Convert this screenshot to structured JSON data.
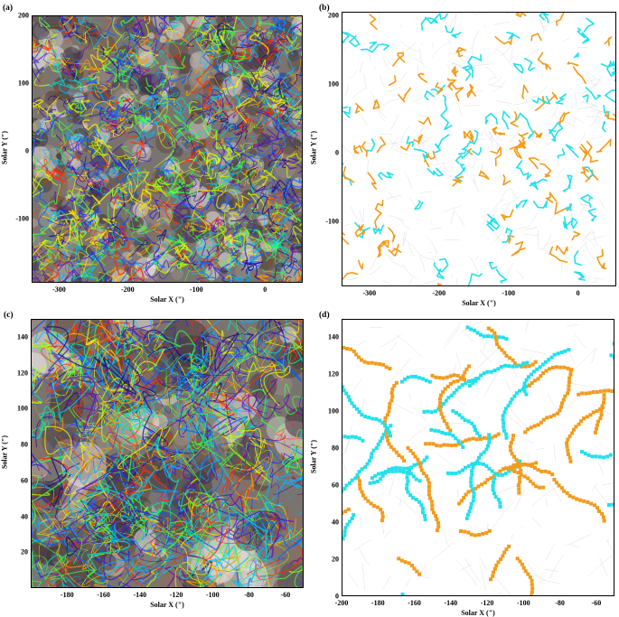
{
  "panels": [
    {
      "label": "(a)",
      "style": "color",
      "xlabel": "Solar X (\")",
      "ylabel": "Solar Y (\")",
      "xticks": [
        "-300",
        "-200",
        "-100",
        "0"
      ],
      "xtick_values": [
        -300,
        -200,
        -100,
        0
      ],
      "yticks": [
        "200",
        "100",
        "0",
        "-100"
      ],
      "ytick_values": [
        200,
        100,
        0,
        -100
      ],
      "xlim": [
        -340,
        55
      ],
      "ylim": [
        -195,
        200
      ]
    },
    {
      "label": "(b)",
      "style": "lines",
      "xlabel": "Solar X (\")",
      "ylabel": "Solar Y (\")",
      "xticks": [
        "-300",
        "-200",
        "-100",
        "0"
      ],
      "xtick_values": [
        -300,
        -200,
        -100,
        0
      ],
      "yticks": [
        "200",
        "100",
        "0",
        "-100"
      ],
      "ytick_values": [
        200,
        100,
        0,
        -100
      ],
      "xlim": [
        -340,
        55
      ],
      "ylim": [
        -195,
        205
      ]
    },
    {
      "label": "(c)",
      "style": "color",
      "xlabel": "Solar X (\")",
      "ylabel": "Solar Y (\")",
      "xticks": [
        "-180",
        "-160",
        "-140",
        "-120",
        "-100",
        "-80",
        "-60"
      ],
      "xtick_values": [
        -180,
        -160,
        -140,
        -120,
        -100,
        -80,
        -60
      ],
      "yticks": [
        "140",
        "120",
        "100",
        "80",
        "60",
        "40",
        "20"
      ],
      "ytick_values": [
        140,
        120,
        100,
        80,
        60,
        40,
        20
      ],
      "xlim": [
        -200,
        -50
      ],
      "ylim": [
        0,
        150
      ]
    },
    {
      "label": "(d)",
      "style": "dots",
      "xlabel": "Solar X (\")",
      "ylabel": "Solar Y (\")",
      "xticks": [
        "-200",
        "-180",
        "-160",
        "-140",
        "-120",
        "-100",
        "-80",
        "-60"
      ],
      "xtick_values": [
        -200,
        -180,
        -160,
        -140,
        -120,
        -100,
        -80,
        -60
      ],
      "yticks": [
        "140",
        "120",
        "100",
        "80",
        "60",
        "40",
        "20",
        "0"
      ],
      "ytick_values": [
        140,
        120,
        100,
        80,
        60,
        40,
        20,
        0
      ],
      "xlim": [
        -200,
        -50
      ],
      "ylim": [
        0,
        150
      ]
    }
  ],
  "colors": {
    "orange": "#f39b1b",
    "cyan": "#22e0ec",
    "faint_field": "#b8b8b8"
  }
}
